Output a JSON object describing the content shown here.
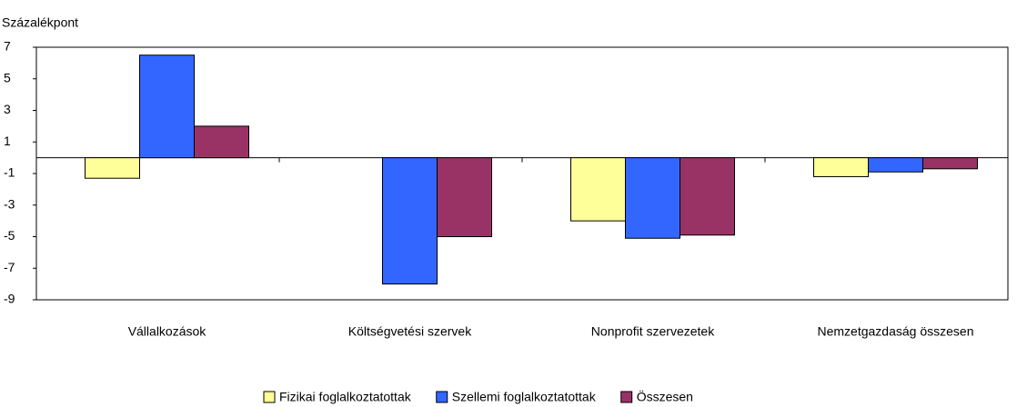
{
  "chart_data": {
    "type": "bar",
    "y_label": "Százalékpont",
    "categories": [
      "Vállalkozások",
      "Költségvetési szervek",
      "Nonprofit szervezetek",
      "Nemzetgazdaság összesen"
    ],
    "series": [
      {
        "name": "Fizikai foglalkoztatottak",
        "color": "#ffff99",
        "values": [
          -1.3,
          0,
          -4.0,
          -1.2
        ]
      },
      {
        "name": "Szellemi foglalkoztatottak",
        "color": "#3366ff",
        "values": [
          6.5,
          -8.0,
          -5.1,
          -0.9
        ]
      },
      {
        "name": "Összesen",
        "color": "#993366",
        "values": [
          2.0,
          -5.0,
          -4.9,
          -0.7
        ]
      }
    ],
    "ylim": [
      -9,
      7
    ],
    "yticks": [
      -9,
      -7,
      -5,
      -3,
      -1,
      1,
      3,
      5,
      7
    ],
    "grid": false,
    "legend": "bottom"
  }
}
